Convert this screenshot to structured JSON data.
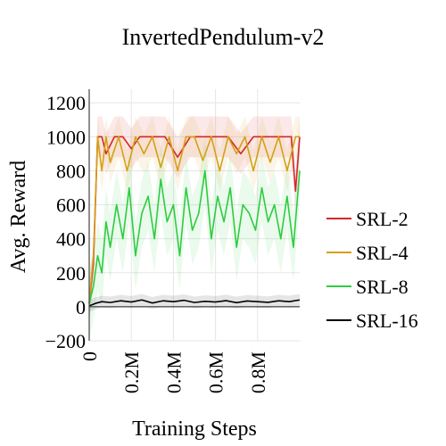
{
  "chart_data": {
    "type": "line",
    "title": "InvertedPendulum-v2",
    "xlabel": "Training Steps",
    "ylabel": "Avg. Reward",
    "xlim": [
      0,
      1000000
    ],
    "ylim": [
      -200,
      1280
    ],
    "grid": true,
    "legend": "right",
    "xticks": [
      {
        "value": 0,
        "label": "0"
      },
      {
        "value": 200000,
        "label": "0.2M"
      },
      {
        "value": 400000,
        "label": "0.4M"
      },
      {
        "value": 600000,
        "label": "0.6M"
      },
      {
        "value": 800000,
        "label": "0.8M"
      }
    ],
    "yticks": [
      {
        "value": -200,
        "label": "−200"
      },
      {
        "value": 0,
        "label": "0"
      },
      {
        "value": 200,
        "label": "200"
      },
      {
        "value": 400,
        "label": "400"
      },
      {
        "value": 600,
        "label": "600"
      },
      {
        "value": 800,
        "label": "800"
      },
      {
        "value": 1000,
        "label": "1000"
      },
      {
        "value": 1200,
        "label": "1200"
      }
    ],
    "series": [
      {
        "name": "SRL-2",
        "color": "#d62728",
        "x": [
          0,
          20000,
          40000,
          60000,
          80000,
          120000,
          160000,
          200000,
          240000,
          300000,
          360000,
          420000,
          480000,
          540000,
          600000,
          660000,
          720000,
          780000,
          840000,
          900000,
          960000,
          980000,
          1000000
        ],
        "y": [
          20,
          250,
          1000,
          1000,
          900,
          1000,
          1000,
          930,
          1000,
          1000,
          1000,
          880,
          1000,
          1000,
          1000,
          1000,
          900,
          1000,
          1000,
          1000,
          1000,
          680,
          1000
        ]
      },
      {
        "name": "SRL-4",
        "color": "#d4a017",
        "x": [
          0,
          20000,
          40000,
          60000,
          80000,
          100000,
          140000,
          180000,
          220000,
          260000,
          300000,
          340000,
          380000,
          420000,
          460000,
          500000,
          540000,
          580000,
          620000,
          660000,
          700000,
          740000,
          780000,
          820000,
          860000,
          900000,
          940000,
          980000,
          1000000
        ],
        "y": [
          20,
          300,
          1000,
          800,
          1000,
          850,
          1000,
          800,
          1000,
          900,
          1000,
          820,
          1000,
          800,
          1000,
          1000,
          860,
          1000,
          800,
          1000,
          900,
          1000,
          800,
          1000,
          850,
          1000,
          800,
          1000,
          1000
        ]
      },
      {
        "name": "SRL-8",
        "color": "#2ecc40",
        "x": [
          0,
          20000,
          40000,
          60000,
          80000,
          100000,
          130000,
          160000,
          190000,
          220000,
          250000,
          280000,
          310000,
          340000,
          370000,
          400000,
          430000,
          460000,
          490000,
          520000,
          550000,
          580000,
          610000,
          640000,
          670000,
          700000,
          730000,
          760000,
          790000,
          820000,
          850000,
          880000,
          910000,
          940000,
          970000,
          1000000
        ],
        "y": [
          20,
          120,
          300,
          200,
          500,
          350,
          600,
          400,
          700,
          300,
          550,
          650,
          400,
          750,
          500,
          600,
          300,
          700,
          450,
          550,
          800,
          400,
          650,
          500,
          700,
          350,
          600,
          550,
          450,
          700,
          500,
          600,
          400,
          650,
          350,
          800
        ]
      },
      {
        "name": "SRL-16",
        "color": "#000000",
        "x": [
          0,
          30000,
          60000,
          100000,
          150000,
          200000,
          250000,
          300000,
          350000,
          400000,
          450000,
          500000,
          550000,
          600000,
          650000,
          700000,
          750000,
          800000,
          850000,
          900000,
          950000,
          1000000
        ],
        "y": [
          5,
          20,
          30,
          25,
          35,
          28,
          40,
          22,
          35,
          30,
          38,
          25,
          32,
          28,
          36,
          24,
          34,
          30,
          26,
          35,
          30,
          40
        ]
      }
    ]
  }
}
